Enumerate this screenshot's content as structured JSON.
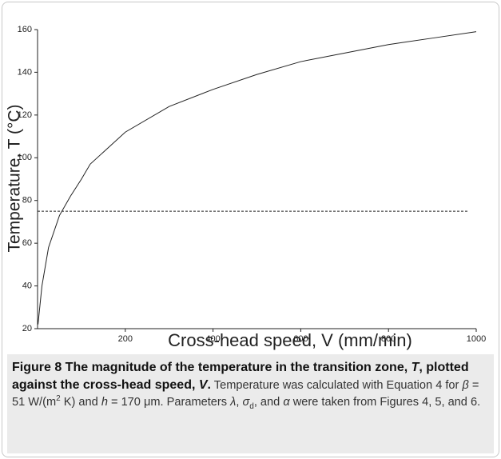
{
  "chart_data": {
    "type": "line",
    "xlabel": "Cross-head speed, V (mm/min)",
    "ylabel": "Temperature, T (°C)",
    "series": [
      {
        "x": [
          1,
          10,
          25,
          50,
          75,
          100,
          120,
          200,
          300,
          400,
          500,
          600,
          700,
          800,
          900,
          1000
        ],
        "values": [
          22,
          40,
          58,
          73,
          82,
          90,
          97,
          112,
          124,
          132,
          139,
          145,
          149,
          153,
          156,
          159
        ],
        "color": "#222222",
        "dash": false
      },
      {
        "x": [
          0,
          980
        ],
        "values": [
          75,
          75
        ],
        "color": "#222222",
        "dash": true
      }
    ],
    "xlim": [
      0,
      1000
    ],
    "xticks": [
      200,
      400,
      600,
      800,
      1000
    ],
    "ylim": [
      20,
      160
    ],
    "yticks": [
      20,
      40,
      60,
      80,
      100,
      120,
      140,
      160
    ],
    "grid": false
  },
  "caption": [
    {
      "text": "Figure 8 The magnitude of the temperature in the transition zone, ",
      "style": "bold"
    },
    {
      "text": "T",
      "style": "bold-italic"
    },
    {
      "text": ", plotted against the cross-head speed, ",
      "style": "bold"
    },
    {
      "text": "V",
      "style": "bold-italic"
    },
    {
      "text": ".",
      "style": "bold"
    },
    {
      "text": " Temperature was calculated with Equation 4 for ",
      "style": "normal"
    },
    {
      "text": "β",
      "style": "italic"
    },
    {
      "text": " = 51 W/(m",
      "style": "normal"
    },
    {
      "text": "2",
      "style": "sup"
    },
    {
      "text": " K) and ",
      "style": "normal"
    },
    {
      "text": "h",
      "style": "italic"
    },
    {
      "text": " = 170 μm. Parameters ",
      "style": "normal"
    },
    {
      "text": "λ",
      "style": "italic"
    },
    {
      "text": ", ",
      "style": "normal"
    },
    {
      "text": "σ",
      "style": "italic"
    },
    {
      "text": "d",
      "style": "sub"
    },
    {
      "text": ", and ",
      "style": "normal"
    },
    {
      "text": "α",
      "style": "italic"
    },
    {
      "text": " were taken from Figures 4, 5, and 6.",
      "style": "normal"
    }
  ]
}
